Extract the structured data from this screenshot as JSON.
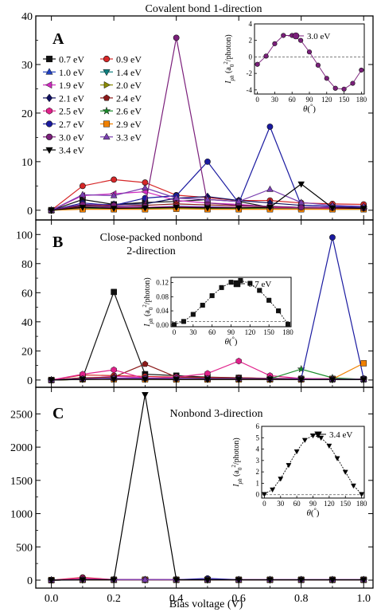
{
  "figure": {
    "xlabel": "Bias voltage (V)",
    "xticks": [
      "0.0",
      "0.2",
      "0.4",
      "0.6",
      "0.8",
      "1.0"
    ]
  },
  "energy_colors": {
    "0.7 eV": "#111111",
    "0.9 eV": "#d62728",
    "1.0 eV": "#1f3fbf",
    "1.4 eV": "#0f7f7f",
    "1.9 eV": "#d02bc0",
    "2.0 eV": "#8a8a00",
    "2.1 eV": "#101060",
    "2.4 eV": "#8b1a1a",
    "2.5 eV": "#e0208a",
    "2.6 eV": "#1a8a2a",
    "2.7 eV": "#1a1aa0",
    "2.9 eV": "#f08000",
    "3.0 eV": "#7b1f7b",
    "3.3 eV": "#7a3fb0",
    "3.4 eV": "#000000"
  },
  "chart_data": [
    {
      "panel": "A",
      "type": "line",
      "title": "Covalent bond 1-direction",
      "ylim": [
        -2,
        40
      ],
      "yticks": [
        0,
        10,
        20,
        30,
        40
      ],
      "x": [
        0.0,
        0.1,
        0.2,
        0.3,
        0.4,
        0.5,
        0.6,
        0.7,
        0.8,
        0.9,
        1.0
      ],
      "legend": {
        "columns": 2,
        "items": [
          {
            "name": "0.7 eV",
            "marker": "square"
          },
          {
            "name": "0.9 eV",
            "marker": "circle"
          },
          {
            "name": "1.0 eV",
            "marker": "triangle-up"
          },
          {
            "name": "1.4 eV",
            "marker": "triangle-down"
          },
          {
            "name": "1.9 eV",
            "marker": "triangle-left"
          },
          {
            "name": "2.0 eV",
            "marker": "triangle-right"
          },
          {
            "name": "2.1 eV",
            "marker": "diamond"
          },
          {
            "name": "2.4 eV",
            "marker": "pentagon"
          },
          {
            "name": "2.5 eV",
            "marker": "hexagon"
          },
          {
            "name": "2.6 eV",
            "marker": "star"
          },
          {
            "name": "2.7 eV",
            "marker": "circle"
          },
          {
            "name": "2.9 eV",
            "marker": "square"
          },
          {
            "name": "3.0 eV",
            "marker": "circle"
          },
          {
            "name": "3.3 eV",
            "marker": "triangle-up"
          },
          {
            "name": "3.4 eV",
            "marker": "triangle-down"
          }
        ]
      },
      "series": [
        {
          "name": "0.7 eV",
          "values": [
            0,
            2.2,
            1.2,
            1.6,
            1.8,
            2.2,
            1.8,
            0.6,
            0.5,
            0.5,
            0.4
          ]
        },
        {
          "name": "0.9 eV",
          "values": [
            0,
            5.0,
            6.3,
            5.7,
            3.1,
            2.6,
            2.0,
            2.0,
            1.5,
            1.3,
            1.2
          ]
        },
        {
          "name": "1.0 eV",
          "values": [
            0,
            0.6,
            0.7,
            0.6,
            0.8,
            0.7,
            0.6,
            0.5,
            0.5,
            0.5,
            0.5
          ]
        },
        {
          "name": "1.4 eV",
          "values": [
            0,
            0.4,
            0.5,
            0.5,
            0.6,
            0.5,
            0.5,
            0.4,
            0.4,
            0.4,
            0.3
          ]
        },
        {
          "name": "1.9 eV",
          "values": [
            0,
            3.0,
            3.4,
            3.8,
            2.0,
            1.5,
            1.2,
            0.7,
            0.6,
            0.6,
            0.5
          ]
        },
        {
          "name": "2.0 eV",
          "values": [
            0,
            0.3,
            0.4,
            0.4,
            0.5,
            0.4,
            0.4,
            0.3,
            0.3,
            0.3,
            0.3
          ]
        },
        {
          "name": "2.1 eV",
          "values": [
            0,
            1.0,
            1.2,
            1.3,
            2.5,
            2.8,
            2.0,
            1.5,
            1.0,
            0.8,
            0.6
          ]
        },
        {
          "name": "2.4 eV",
          "values": [
            0,
            0.8,
            0.9,
            1.0,
            1.3,
            1.1,
            0.9,
            0.7,
            0.6,
            0.5,
            0.5
          ]
        },
        {
          "name": "2.5 eV",
          "values": [
            0,
            0.5,
            0.6,
            0.6,
            0.7,
            0.6,
            0.6,
            0.5,
            0.4,
            0.4,
            0.4
          ]
        },
        {
          "name": "2.6 eV",
          "values": [
            0,
            0.3,
            0.3,
            0.4,
            0.4,
            0.3,
            0.3,
            0.3,
            0.3,
            0.2,
            0.2
          ]
        },
        {
          "name": "2.7 eV",
          "values": [
            0,
            1.5,
            1.0,
            2.5,
            3.0,
            10.0,
            1.5,
            17.2,
            1.0,
            0.8,
            0.6
          ]
        },
        {
          "name": "2.9 eV",
          "values": [
            0,
            0.2,
            0.2,
            0.2,
            0.3,
            0.2,
            0.2,
            0.2,
            0.2,
            0.2,
            0.2
          ]
        },
        {
          "name": "3.0 eV",
          "values": [
            0,
            1.2,
            1.0,
            0.8,
            35.5,
            1.5,
            1.0,
            0.8,
            0.6,
            0.5,
            0.4
          ]
        },
        {
          "name": "3.3 eV",
          "values": [
            0,
            3.2,
            3.0,
            4.6,
            2.5,
            2.2,
            1.8,
            4.3,
            1.6,
            1.0,
            0.8
          ]
        },
        {
          "name": "3.4 eV",
          "values": [
            0,
            0.6,
            0.4,
            0.5,
            0.6,
            0.5,
            0.5,
            0.6,
            5.4,
            0.5,
            0.4
          ]
        }
      ],
      "inset": {
        "type": "line",
        "legend": "3.0 eV",
        "ylabel_main": "I",
        "ylabel_sub": "ph",
        "ylabel_rest": " (a",
        "ylabel_sub2": "0",
        "ylabel_sup": "2",
        "ylabel_tail": "/photon)",
        "xlabel_main": "θ",
        "xlabel_sup": "°",
        "xlabel_paren_l": "(",
        "xlabel_paren_r": ")",
        "xlim": [
          -5,
          185
        ],
        "ylim": [
          -4.5,
          4
        ],
        "xticks": [
          0,
          30,
          60,
          90,
          120,
          150,
          180
        ],
        "yticks": [
          -4,
          -2,
          0,
          2,
          4
        ],
        "x": [
          0,
          15,
          30,
          45,
          60,
          75,
          90,
          105,
          120,
          135,
          150,
          165,
          180
        ],
        "values": [
          -0.9,
          0.1,
          1.6,
          2.6,
          2.6,
          2.0,
          0.6,
          -1.0,
          -2.6,
          -3.8,
          -3.9,
          -3.2,
          -1.6
        ]
      }
    },
    {
      "panel": "B",
      "type": "line",
      "title": "Close-packed nonbond",
      "title_line2": "2-direction",
      "ylim": [
        -5,
        110
      ],
      "yticks": [
        0,
        20,
        40,
        60,
        80,
        100
      ],
      "x": [
        0.0,
        0.1,
        0.2,
        0.3,
        0.4,
        0.5,
        0.6,
        0.7,
        0.8,
        0.9,
        1.0
      ],
      "series": [
        {
          "name": "0.7 eV",
          "values": [
            0,
            1.5,
            60.5,
            4.0,
            3.0,
            2.0,
            1.5,
            1.0,
            0.8,
            0.8,
            0.6
          ]
        },
        {
          "name": "0.9 eV",
          "values": [
            0,
            3.5,
            3.0,
            2.5,
            2.0,
            1.8,
            1.5,
            1.2,
            1.0,
            0.8,
            0.7
          ]
        },
        {
          "name": "1.0 eV",
          "values": [
            0,
            1.0,
            1.2,
            1.0,
            0.8,
            0.8,
            0.7,
            0.6,
            0.6,
            0.5,
            0.5
          ]
        },
        {
          "name": "1.4 eV",
          "values": [
            0,
            0.5,
            0.6,
            0.5,
            0.5,
            0.4,
            0.4,
            0.4,
            0.3,
            0.3,
            0.3
          ]
        },
        {
          "name": "1.9 eV",
          "values": [
            0,
            1.0,
            2.5,
            1.5,
            1.2,
            1.0,
            0.8,
            0.7,
            0.6,
            0.5,
            0.5
          ]
        },
        {
          "name": "2.0 eV",
          "values": [
            0,
            0.5,
            0.5,
            0.5,
            0.4,
            0.4,
            0.4,
            0.3,
            0.3,
            0.3,
            0.3
          ]
        },
        {
          "name": "2.1 eV",
          "values": [
            0,
            0.8,
            1.0,
            0.9,
            0.8,
            0.7,
            0.6,
            0.5,
            0.5,
            0.5,
            0.4
          ]
        },
        {
          "name": "2.4 eV",
          "values": [
            0,
            1.5,
            2.0,
            11.0,
            2.0,
            1.5,
            1.5,
            1.0,
            0.8,
            0.8,
            0.6
          ]
        },
        {
          "name": "2.5 eV",
          "values": [
            0,
            4.0,
            7.0,
            1.0,
            2.0,
            4.5,
            13.0,
            3.0,
            1.0,
            0.8,
            0.6
          ]
        },
        {
          "name": "2.6 eV",
          "values": [
            0,
            0.5,
            0.6,
            0.6,
            0.5,
            0.5,
            0.5,
            0.8,
            7.5,
            1.5,
            0.4
          ]
        },
        {
          "name": "2.7 eV",
          "values": [
            0,
            0.8,
            0.8,
            0.8,
            0.8,
            0.8,
            0.8,
            0.8,
            0.8,
            98.0,
            1.0
          ]
        },
        {
          "name": "2.9 eV",
          "values": [
            0,
            0.5,
            0.5,
            0.5,
            0.4,
            0.4,
            0.4,
            0.4,
            0.4,
            0.6,
            11.5
          ]
        },
        {
          "name": "3.0 eV",
          "values": [
            0,
            0.6,
            1.0,
            1.2,
            1.0,
            0.8,
            0.8,
            0.7,
            0.6,
            0.5,
            0.5
          ]
        },
        {
          "name": "3.3 eV",
          "values": [
            0,
            0.8,
            1.2,
            1.2,
            1.0,
            1.0,
            0.8,
            0.8,
            0.7,
            0.6,
            0.5
          ]
        },
        {
          "name": "3.4 eV",
          "values": [
            0,
            0.4,
            0.5,
            0.5,
            0.4,
            0.4,
            0.4,
            0.4,
            0.3,
            0.3,
            0.3
          ]
        }
      ],
      "inset": {
        "type": "line",
        "legend": "0.7 eV",
        "ylabel_main": "I",
        "ylabel_sub": "ph",
        "ylabel_rest": " (a",
        "ylabel_sub2": "0",
        "ylabel_sup": "2",
        "ylabel_tail": "/photon)",
        "xlabel_main": "θ",
        "xlabel_sup": "°",
        "xlabel_paren_l": "(",
        "xlabel_paren_r": ")",
        "xlim": [
          -5,
          185
        ],
        "ylim": [
          -0.005,
          0.135
        ],
        "xticks": [
          0,
          30,
          60,
          90,
          120,
          150,
          180
        ],
        "ytick_labels": [
          "0.00",
          "0.04",
          "0.08",
          "0.12"
        ],
        "yticks": [
          0,
          0.04,
          0.08,
          0.12
        ],
        "baseline": 0.01,
        "x": [
          0,
          15,
          30,
          45,
          60,
          75,
          90,
          105,
          120,
          135,
          150,
          165,
          180
        ],
        "values": [
          0.001,
          0.01,
          0.03,
          0.056,
          0.083,
          0.106,
          0.121,
          0.126,
          0.118,
          0.098,
          0.07,
          0.04,
          0.002
        ]
      }
    },
    {
      "panel": "C",
      "type": "line",
      "title": "Nonbond 3-direction",
      "ylim": [
        -120,
        2900
      ],
      "yticks": [
        0,
        500,
        1000,
        1500,
        2000,
        2500
      ],
      "x": [
        0.0,
        0.1,
        0.2,
        0.3,
        0.4,
        0.5,
        0.6,
        0.7,
        0.8,
        0.9,
        1.0
      ],
      "series": [
        {
          "name": "0.7 eV",
          "values": [
            0,
            5,
            5,
            5,
            5,
            5,
            5,
            5,
            5,
            5,
            5
          ]
        },
        {
          "name": "0.9 eV",
          "values": [
            0,
            40,
            8,
            8,
            6,
            6,
            6,
            6,
            6,
            6,
            6
          ]
        },
        {
          "name": "1.0 eV",
          "values": [
            0,
            5,
            5,
            5,
            5,
            5,
            5,
            5,
            5,
            5,
            5
          ]
        },
        {
          "name": "1.4 eV",
          "values": [
            0,
            5,
            5,
            5,
            5,
            5,
            5,
            5,
            5,
            5,
            5
          ]
        },
        {
          "name": "1.9 eV",
          "values": [
            0,
            5,
            5,
            5,
            5,
            5,
            5,
            5,
            5,
            5,
            5
          ]
        },
        {
          "name": "2.0 eV",
          "values": [
            0,
            5,
            5,
            5,
            5,
            5,
            5,
            5,
            5,
            5,
            5
          ]
        },
        {
          "name": "2.1 eV",
          "values": [
            0,
            5,
            5,
            5,
            5,
            5,
            5,
            5,
            5,
            5,
            5
          ]
        },
        {
          "name": "2.4 eV",
          "values": [
            0,
            5,
            5,
            5,
            5,
            5,
            5,
            5,
            5,
            5,
            5
          ]
        },
        {
          "name": "2.5 eV",
          "values": [
            0,
            30,
            8,
            8,
            6,
            6,
            6,
            6,
            6,
            6,
            6
          ]
        },
        {
          "name": "2.6 eV",
          "values": [
            0,
            5,
            5,
            5,
            5,
            5,
            5,
            5,
            5,
            5,
            5
          ]
        },
        {
          "name": "2.7 eV",
          "values": [
            0,
            6,
            6,
            6,
            6,
            25,
            6,
            6,
            6,
            6,
            6
          ]
        },
        {
          "name": "2.9 eV",
          "values": [
            0,
            5,
            5,
            5,
            5,
            5,
            5,
            5,
            5,
            5,
            5
          ]
        },
        {
          "name": "3.0 eV",
          "values": [
            0,
            10,
            6,
            6,
            6,
            6,
            6,
            6,
            6,
            6,
            6
          ]
        },
        {
          "name": "3.3 eV",
          "values": [
            0,
            6,
            6,
            6,
            6,
            6,
            6,
            6,
            6,
            6,
            6
          ]
        },
        {
          "name": "3.4 eV",
          "values": [
            0,
            5,
            5,
            2790,
            5,
            5,
            5,
            5,
            5,
            5,
            5
          ]
        }
      ],
      "inset": {
        "type": "line",
        "legend": "3.4 eV",
        "ylabel_main": "I",
        "ylabel_sub": "ph",
        "ylabel_rest": " (a",
        "ylabel_sub2": "0",
        "ylabel_sup": "2",
        "ylabel_tail": "/photon)",
        "xlabel_main": "θ",
        "xlabel_sup": "°",
        "xlabel_paren_l": "(",
        "xlabel_paren_r": ")",
        "xlim": [
          -5,
          185
        ],
        "ylim": [
          -0.3,
          6
        ],
        "xticks": [
          0,
          30,
          60,
          90,
          120,
          150,
          180
        ],
        "yticks": [
          0,
          1,
          2,
          3,
          4,
          5,
          6
        ],
        "baseline": 0,
        "x": [
          0,
          15,
          30,
          45,
          60,
          75,
          90,
          105,
          120,
          135,
          150,
          165,
          180
        ],
        "values": [
          0.05,
          0.45,
          1.4,
          2.6,
          3.8,
          4.8,
          5.2,
          5.0,
          4.3,
          3.2,
          2.0,
          0.8,
          0.05
        ]
      }
    }
  ]
}
